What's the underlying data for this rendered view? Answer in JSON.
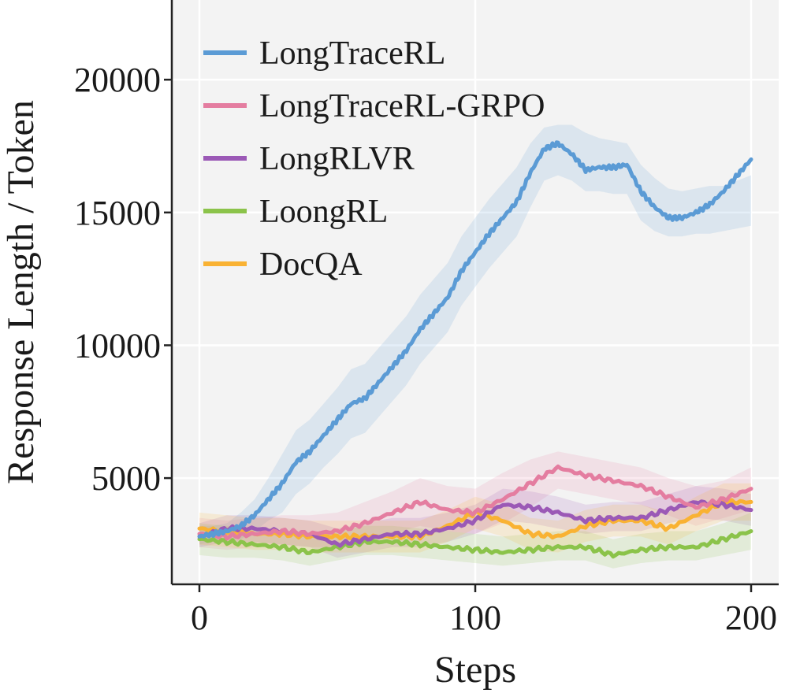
{
  "chart_data": {
    "type": "line",
    "xlabel": "Steps",
    "ylabel": "Response Length / Token",
    "xlim": [
      -10,
      210
    ],
    "ylim": [
      1000,
      23000
    ],
    "xticks": [
      0,
      100,
      200
    ],
    "yticks": [
      5000,
      10000,
      15000,
      20000
    ],
    "grid": true,
    "legend_position": "top-left",
    "background": "#f3f3f3",
    "series": [
      {
        "name": "LongTraceRL",
        "color": "#5b9bd5",
        "x": [
          0,
          5,
          10,
          15,
          20,
          25,
          30,
          35,
          40,
          45,
          50,
          55,
          60,
          65,
          70,
          75,
          80,
          85,
          90,
          95,
          100,
          105,
          110,
          115,
          120,
          125,
          130,
          135,
          140,
          145,
          150,
          155,
          160,
          165,
          170,
          175,
          180,
          185,
          190,
          195,
          200
        ],
        "y": [
          2800,
          2900,
          3000,
          3200,
          3600,
          4200,
          4800,
          5600,
          6000,
          6600,
          7200,
          7800,
          8000,
          8600,
          9200,
          9800,
          10600,
          11200,
          11800,
          12800,
          13500,
          14200,
          14800,
          15400,
          16500,
          17400,
          17600,
          17200,
          16600,
          16700,
          16700,
          16800,
          15800,
          15200,
          14800,
          14800,
          15000,
          15300,
          15800,
          16400,
          17000
        ],
        "band": [
          [
            2500,
            3200
          ],
          [
            2600,
            3200
          ],
          [
            2700,
            3300
          ],
          [
            2700,
            3700
          ],
          [
            3000,
            4200
          ],
          [
            3400,
            5000
          ],
          [
            3700,
            5900
          ],
          [
            4400,
            6800
          ],
          [
            4800,
            7200
          ],
          [
            5400,
            7800
          ],
          [
            5900,
            8400
          ],
          [
            6500,
            9100
          ],
          [
            6700,
            9300
          ],
          [
            7300,
            9900
          ],
          [
            7900,
            10500
          ],
          [
            8500,
            11100
          ],
          [
            9300,
            11900
          ],
          [
            9900,
            12500
          ],
          [
            10500,
            13100
          ],
          [
            11500,
            14100
          ],
          [
            12200,
            14800
          ],
          [
            12900,
            15500
          ],
          [
            13500,
            16100
          ],
          [
            14100,
            16700
          ],
          [
            15200,
            17600
          ],
          [
            16200,
            18200
          ],
          [
            16400,
            18300
          ],
          [
            16200,
            18300
          ],
          [
            15800,
            18000
          ],
          [
            15800,
            17800
          ],
          [
            15700,
            17700
          ],
          [
            15700,
            17600
          ],
          [
            14700,
            16800
          ],
          [
            14300,
            16300
          ],
          [
            14100,
            15900
          ],
          [
            14100,
            15800
          ],
          [
            14200,
            15900
          ],
          [
            14200,
            16000
          ],
          [
            14300,
            16000
          ],
          [
            14400,
            16200
          ],
          [
            14500,
            16400
          ]
        ]
      },
      {
        "name": "LongTraceRL-GRPO",
        "color": "#e47da0",
        "x": [
          0,
          10,
          20,
          30,
          40,
          50,
          60,
          70,
          80,
          90,
          100,
          110,
          120,
          130,
          140,
          150,
          160,
          170,
          180,
          190,
          200
        ],
        "y": [
          2900,
          2800,
          2900,
          3000,
          2900,
          3000,
          3300,
          3700,
          4100,
          3800,
          3700,
          4200,
          4800,
          5400,
          5100,
          4900,
          4700,
          4300,
          3900,
          4200,
          4600
        ],
        "band": [
          [
            2400,
            3500
          ],
          [
            2300,
            3400
          ],
          [
            2400,
            3500
          ],
          [
            2500,
            3600
          ],
          [
            2400,
            3600
          ],
          [
            2400,
            3700
          ],
          [
            2600,
            4100
          ],
          [
            2900,
            4500
          ],
          [
            3200,
            5000
          ],
          [
            3000,
            4700
          ],
          [
            2900,
            4600
          ],
          [
            3300,
            5200
          ],
          [
            3900,
            5700
          ],
          [
            4600,
            6000
          ],
          [
            4400,
            5800
          ],
          [
            4200,
            5600
          ],
          [
            4000,
            5400
          ],
          [
            3600,
            5000
          ],
          [
            3200,
            4700
          ],
          [
            3500,
            4900
          ],
          [
            3800,
            5400
          ]
        ]
      },
      {
        "name": "LongRLVR",
        "color": "#9b59b6",
        "x": [
          0,
          10,
          20,
          30,
          40,
          50,
          60,
          70,
          80,
          90,
          100,
          110,
          120,
          130,
          140,
          150,
          160,
          170,
          180,
          190,
          200
        ],
        "y": [
          2800,
          3100,
          3100,
          3000,
          2900,
          2500,
          2700,
          2900,
          2900,
          3100,
          3400,
          4000,
          3900,
          3700,
          3400,
          3500,
          3500,
          3800,
          4100,
          4000,
          3800
        ],
        "band": [
          [
            2400,
            3300
          ],
          [
            2600,
            3600
          ],
          [
            2600,
            3600
          ],
          [
            2500,
            3500
          ],
          [
            2400,
            3400
          ],
          [
            2000,
            3100
          ],
          [
            2200,
            3300
          ],
          [
            2400,
            3500
          ],
          [
            2400,
            3500
          ],
          [
            2600,
            3700
          ],
          [
            2900,
            4000
          ],
          [
            3400,
            4600
          ],
          [
            3300,
            4500
          ],
          [
            3100,
            4300
          ],
          [
            2900,
            4000
          ],
          [
            3000,
            4100
          ],
          [
            3000,
            4100
          ],
          [
            3300,
            4400
          ],
          [
            3500,
            4700
          ],
          [
            3400,
            4600
          ],
          [
            3200,
            4400
          ]
        ]
      },
      {
        "name": "LoongRL",
        "color": "#8bc34a",
        "x": [
          0,
          10,
          20,
          30,
          40,
          50,
          60,
          70,
          80,
          90,
          100,
          110,
          120,
          130,
          140,
          150,
          160,
          170,
          180,
          190,
          200
        ],
        "y": [
          2700,
          2600,
          2500,
          2400,
          2200,
          2400,
          2600,
          2600,
          2500,
          2400,
          2300,
          2200,
          2300,
          2400,
          2400,
          2100,
          2300,
          2400,
          2400,
          2700,
          3000
        ],
        "band": [
          [
            2100,
            3300
          ],
          [
            2000,
            3200
          ],
          [
            2000,
            3100
          ],
          [
            1900,
            3000
          ],
          [
            1700,
            2800
          ],
          [
            1900,
            3000
          ],
          [
            2100,
            3200
          ],
          [
            2100,
            3200
          ],
          [
            2000,
            3100
          ],
          [
            1900,
            3000
          ],
          [
            1800,
            2900
          ],
          [
            1700,
            2800
          ],
          [
            1800,
            2900
          ],
          [
            1900,
            3000
          ],
          [
            1900,
            3000
          ],
          [
            1600,
            2700
          ],
          [
            1800,
            2900
          ],
          [
            1900,
            3000
          ],
          [
            1900,
            3000
          ],
          [
            2100,
            3300
          ],
          [
            2300,
            3700
          ]
        ]
      },
      {
        "name": "DocQA",
        "color": "#f9b233",
        "x": [
          0,
          10,
          20,
          30,
          40,
          50,
          60,
          70,
          80,
          90,
          100,
          110,
          120,
          130,
          140,
          150,
          160,
          170,
          180,
          190,
          200
        ],
        "y": [
          3100,
          3000,
          2900,
          2900,
          2800,
          2800,
          2800,
          2800,
          2800,
          3200,
          3700,
          3400,
          2900,
          2800,
          3200,
          3400,
          3400,
          3100,
          3600,
          4100,
          4100
        ],
        "band": [
          [
            2500,
            3700
          ],
          [
            2400,
            3600
          ],
          [
            2300,
            3500
          ],
          [
            2300,
            3500
          ],
          [
            2200,
            3400
          ],
          [
            2200,
            3400
          ],
          [
            2200,
            3400
          ],
          [
            2200,
            3400
          ],
          [
            2200,
            3400
          ],
          [
            2600,
            3800
          ],
          [
            3100,
            4300
          ],
          [
            2800,
            4000
          ],
          [
            2300,
            3500
          ],
          [
            2200,
            3400
          ],
          [
            2600,
            3800
          ],
          [
            2800,
            4000
          ],
          [
            2800,
            4000
          ],
          [
            2500,
            3700
          ],
          [
            3000,
            4300
          ],
          [
            3400,
            4800
          ],
          [
            3400,
            4800
          ]
        ]
      }
    ]
  }
}
